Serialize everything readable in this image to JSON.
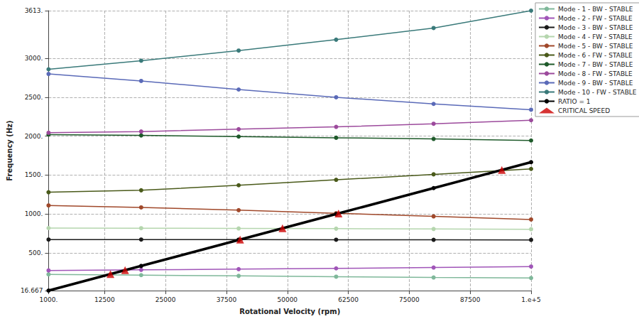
{
  "chart_data": {
    "type": "line",
    "x_label": "Rotational Velocity (rpm)",
    "y_label": "Frequency (Hz)",
    "xlim": [
      1000,
      100000
    ],
    "xticks": [
      {
        "value": 1000,
        "label": "1000."
      },
      12500,
      25000,
      37500,
      50000,
      62500,
      75000,
      87500,
      {
        "value": 100000,
        "label": "1.e+5"
      }
    ],
    "ylim": [
      16.667,
      3613
    ],
    "yticks": [
      16.667,
      {
        "value": 500,
        "label": "500."
      },
      {
        "value": 1000,
        "label": "1000."
      },
      {
        "value": 1500,
        "label": "1500."
      },
      {
        "value": 2000,
        "label": "2000."
      },
      {
        "value": 2500,
        "label": "2500."
      },
      {
        "value": 3000,
        "label": "3000."
      },
      {
        "value": 3613,
        "label": "3613."
      }
    ],
    "grid": true,
    "legend": "right",
    "x": [
      1000,
      20000,
      40000,
      60000,
      80000,
      100000
    ],
    "series": [
      {
        "name": "Mode - 1 - BW - STABLE",
        "color": "#7fb89a",
        "marker": "circle",
        "values": [
          225,
          215,
          205,
          195,
          185,
          178
        ]
      },
      {
        "name": "Mode - 2 - FW - STABLE",
        "color": "#a055b8",
        "marker": "circle",
        "values": [
          275,
          283,
          292,
          302,
          313,
          325
        ]
      },
      {
        "name": "Mode - 3 - BW - STABLE",
        "color": "#1a1a1a",
        "marker": "circle",
        "values": [
          672,
          672,
          671,
          670,
          669,
          668
        ]
      },
      {
        "name": "Mode - 4 - FW - STABLE",
        "color": "#b5d6ae",
        "marker": "circle",
        "values": [
          820,
          818,
          815,
          812,
          808,
          805
        ]
      },
      {
        "name": "Mode - 5 - BW - STABLE",
        "color": "#a0482a",
        "marker": "circle",
        "values": [
          1110,
          1085,
          1050,
          1010,
          970,
          930
        ]
      },
      {
        "name": "Mode - 6 - FW - STABLE",
        "color": "#4a5a1a",
        "marker": "circle",
        "values": [
          1280,
          1305,
          1370,
          1440,
          1510,
          1580
        ]
      },
      {
        "name": "Mode - 7 - BW - STABLE",
        "color": "#1e5a2a",
        "marker": "circle",
        "values": [
          2020,
          2010,
          1995,
          1980,
          1965,
          1945
        ]
      },
      {
        "name": "Mode - 8 - FW - STABLE",
        "color": "#9c4a9c",
        "marker": "circle",
        "values": [
          2045,
          2060,
          2090,
          2120,
          2160,
          2205
        ]
      },
      {
        "name": "Mode - 9 - BW - STABLE",
        "color": "#5a6ab8",
        "marker": "circle",
        "values": [
          2800,
          2710,
          2600,
          2500,
          2415,
          2340
        ]
      },
      {
        "name": "Mode - 10 - FW - STABLE",
        "color": "#3a7a7a",
        "marker": "circle",
        "values": [
          2860,
          2970,
          3100,
          3240,
          3390,
          3613
        ]
      },
      {
        "name": "RATIO = 1",
        "color": "#000000",
        "marker": "circle",
        "line_style": "thick",
        "values": [
          16.667,
          333.333,
          666.667,
          1000,
          1333.333,
          1666.667
        ]
      },
      {
        "name": "CRITICAL SPEED",
        "color": "#cc0000",
        "type": "scatter",
        "marker": "triangle",
        "x": [
          13700,
          16700,
          40300,
          49000,
          60500,
          94000
        ],
        "values": [
          228,
          278,
          672,
          817,
          1008,
          1567
        ]
      }
    ]
  }
}
